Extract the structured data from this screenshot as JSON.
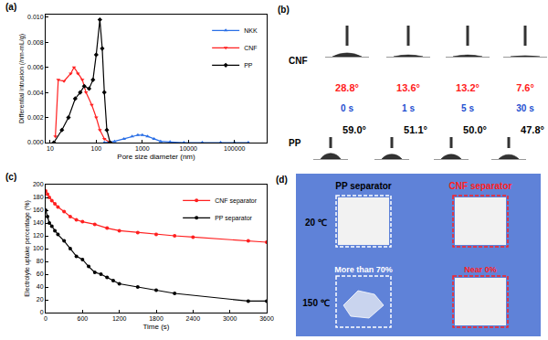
{
  "chart_data": [
    {
      "type": "line",
      "title": "(a)",
      "x_label": "Pore size diameter (nm)",
      "y_label": "Differential intrusion (/nm-mL/g)",
      "log": "x",
      "grid": false,
      "legend": "upper right",
      "xlim": [
        8,
        500000
      ],
      "xticks": [
        10,
        100,
        1000,
        10000,
        100000
      ],
      "ylim": [
        0,
        0.0102
      ],
      "yticks": [
        {
          "value": 0,
          "label": "0.000"
        },
        {
          "value": 0.002,
          "label": "0.002"
        },
        {
          "value": 0.004,
          "label": "0.004"
        },
        {
          "value": 0.006,
          "label": "0.006"
        },
        {
          "value": 0.008,
          "label": "0.008"
        },
        {
          "value": 0.01,
          "label": "0.010"
        }
      ],
      "series": [
        {
          "name": "NKK",
          "color": "#2a6fe6",
          "marker": "triangle-up",
          "line_style": "solid",
          "x": [
            150,
            250,
            400,
            600,
            800,
            1000,
            1300,
            1800,
            2500,
            4000,
            8000,
            20000,
            50000,
            100000,
            200000
          ],
          "values": [
            0,
            0.0001,
            0.0003,
            0.0005,
            0.0006,
            0.0006,
            0.0005,
            0.0003,
            0.0001,
            5e-05,
            0,
            0,
            0,
            0,
            0
          ]
        },
        {
          "name": "CNF",
          "color": "#ff2020",
          "marker": "triangle-down",
          "line_style": "solid",
          "x": [
            13,
            15,
            20,
            28,
            33,
            40,
            50,
            60,
            80,
            100,
            120,
            150,
            200
          ],
          "values": [
            0.0005,
            0.005,
            0.0049,
            0.0055,
            0.006,
            0.0055,
            0.005,
            0.004,
            0.003,
            0.002,
            0.001,
            0.0003,
            0
          ]
        },
        {
          "name": "PP",
          "color": "#000000",
          "marker": "diamond",
          "line_style": "solid",
          "x": [
            12,
            18,
            25,
            35,
            45,
            55,
            70,
            85,
            100,
            120,
            135,
            150,
            170,
            200
          ],
          "values": [
            0,
            0.001,
            0.002,
            0.0035,
            0.004,
            0.0045,
            0.0043,
            0.005,
            0.007,
            0.0098,
            0.0075,
            0.004,
            0.001,
            0
          ]
        }
      ]
    },
    {
      "type": "line",
      "title": "(c)",
      "x_label": "Time (s)",
      "y_label": "Electrolyte uptake percentage (%)",
      "grid": false,
      "legend": "upper right",
      "xlim": [
        0,
        3600
      ],
      "xticks": [
        0,
        600,
        1200,
        1800,
        2400,
        3000,
        3600
      ],
      "ylim": [
        0,
        200
      ],
      "yticks": [
        0,
        20,
        40,
        60,
        80,
        100,
        120,
        140,
        160,
        180,
        200
      ],
      "series": [
        {
          "name": "CNF separator",
          "color": "#ff2020",
          "marker": "circle",
          "line_style": "solid",
          "x": [
            0,
            30,
            60,
            100,
            150,
            200,
            300,
            400,
            500,
            600,
            800,
            1000,
            1200,
            1500,
            1800,
            2100,
            2400,
            3300,
            3600
          ],
          "values": [
            190,
            185,
            180,
            175,
            170,
            165,
            158,
            150,
            145,
            142,
            138,
            132,
            128,
            125,
            122,
            120,
            118,
            112,
            110
          ]
        },
        {
          "name": "PP separator",
          "color": "#000000",
          "marker": "circle",
          "line_style": "solid",
          "x": [
            0,
            30,
            60,
            100,
            150,
            200,
            300,
            400,
            500,
            600,
            700,
            800,
            900,
            1000,
            1100,
            1200,
            1500,
            1800,
            2100,
            3300,
            3600
          ],
          "values": [
            160,
            150,
            140,
            135,
            128,
            122,
            112,
            100,
            88,
            83,
            72,
            63,
            60,
            55,
            50,
            45,
            40,
            35,
            30,
            18,
            18
          ]
        }
      ]
    }
  ],
  "contact_angle": {
    "title": "(b)",
    "times": [
      "0 s",
      "1 s",
      "5 s",
      "30 s"
    ],
    "times_color": "#1f4fd0",
    "rows": [
      {
        "label": "CNF",
        "color": "#ff2020",
        "angles": [
          {
            "value": 28.8,
            "label": "28.8°"
          },
          {
            "value": 13.6,
            "label": "13.6°"
          },
          {
            "value": 13.2,
            "label": "13.2°"
          },
          {
            "value": 7.6,
            "label": "7.6°"
          }
        ]
      },
      {
        "label": "PP",
        "color": "#000000",
        "angles": [
          {
            "value": 59.0,
            "label": "59.0°"
          },
          {
            "value": 51.1,
            "label": "51.1°"
          },
          {
            "value": 50.0,
            "label": "50.0°"
          },
          {
            "value": 47.8,
            "label": "47.8°"
          }
        ]
      }
    ]
  },
  "photos": {
    "title": "(d)",
    "columns": [
      {
        "label": "PP separator",
        "color": "#000000"
      },
      {
        "label": "CNF separator",
        "color": "#ff2020"
      }
    ],
    "rows": [
      "20 ℃",
      "150 ℃"
    ],
    "shrinkage": [
      {
        "label": "More than 70%",
        "color": "#ffffff"
      },
      {
        "label": "Near 0%",
        "color": "#ff2020"
      }
    ]
  }
}
